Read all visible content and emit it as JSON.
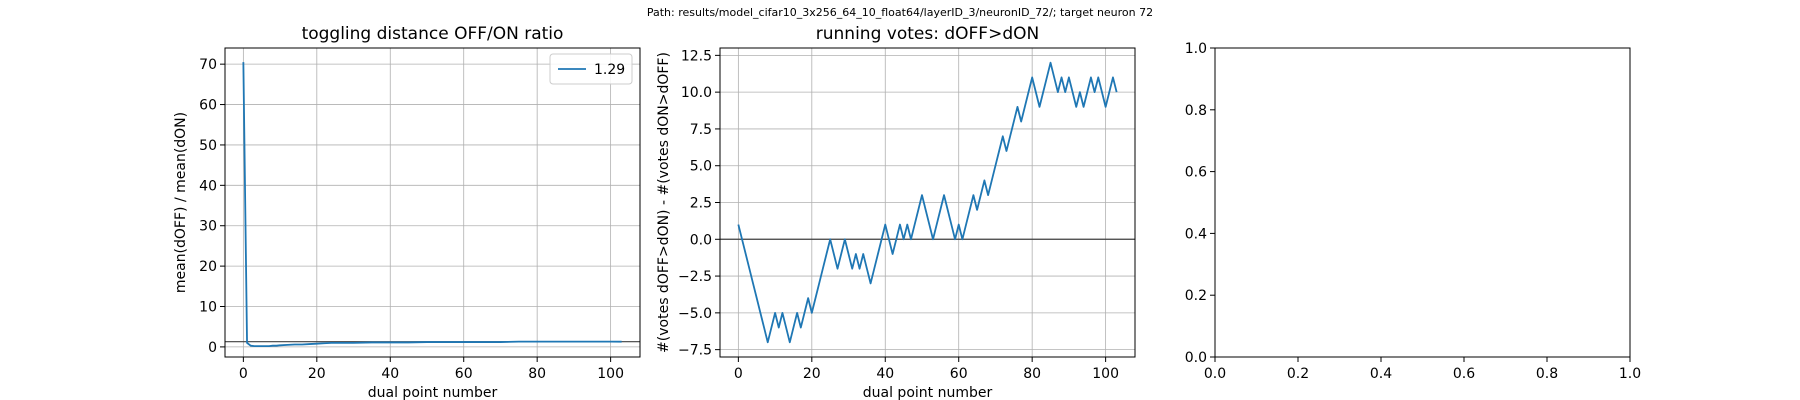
{
  "suptitle": "Path: results/model_cifar10_3x256_64_10_float64/layerID_3/neuronID_72/; target neuron 72",
  "chart_data": [
    {
      "type": "line",
      "title": "toggling distance OFF/ON ratio",
      "xlabel": "dual point number",
      "ylabel": "mean(dOFF) / mean(dON)",
      "xlim": [
        -5,
        108
      ],
      "ylim": [
        -2.5,
        74
      ],
      "xticks": [
        0,
        20,
        40,
        60,
        80,
        100
      ],
      "yticks": [
        0,
        10,
        20,
        30,
        40,
        50,
        60,
        70
      ],
      "xtick_labels": [
        "0",
        "20",
        "40",
        "60",
        "80",
        "100"
      ],
      "ytick_labels": [
        "0",
        "10",
        "20",
        "30",
        "40",
        "50",
        "60",
        "70"
      ],
      "grid": true,
      "legend": "top-right",
      "hline": 1.29,
      "series": [
        {
          "name": "1.29",
          "color": "#1f77b4",
          "x": [
            0,
            1,
            2,
            3,
            4,
            5,
            6,
            7,
            8,
            9,
            10,
            12,
            14,
            16,
            18,
            20,
            22,
            24,
            26,
            28,
            30,
            35,
            40,
            45,
            50,
            55,
            60,
            65,
            70,
            75,
            80,
            85,
            90,
            95,
            100,
            103
          ],
          "y": [
            70.5,
            1.0,
            0.3,
            0.2,
            0.2,
            0.2,
            0.2,
            0.2,
            0.3,
            0.3,
            0.4,
            0.5,
            0.6,
            0.6,
            0.7,
            0.8,
            0.9,
            1.0,
            1.0,
            1.0,
            1.0,
            1.1,
            1.1,
            1.1,
            1.2,
            1.2,
            1.2,
            1.2,
            1.2,
            1.3,
            1.3,
            1.3,
            1.3,
            1.3,
            1.3,
            1.29
          ]
        }
      ]
    },
    {
      "type": "line",
      "title": "running votes: dOFF>dON",
      "xlabel": "dual point number",
      "ylabel": "#(votes dOFF>dON) - #(votes dON>dOFF)",
      "xlim": [
        -5,
        108
      ],
      "ylim": [
        -8,
        13
      ],
      "xticks": [
        0,
        20,
        40,
        60,
        80,
        100
      ],
      "yticks": [
        -7.5,
        -5.0,
        -2.5,
        0.0,
        2.5,
        5.0,
        7.5,
        10.0,
        12.5
      ],
      "xtick_labels": [
        "0",
        "20",
        "40",
        "60",
        "80",
        "100"
      ],
      "ytick_labels": [
        "−7.5",
        "−5.0",
        "−2.5",
        "0.0",
        "2.5",
        "5.0",
        "7.5",
        "10.0",
        "12.5"
      ],
      "grid": true,
      "hline": 0,
      "series": [
        {
          "color": "#1f77b4",
          "x": [
            0,
            1,
            2,
            3,
            4,
            5,
            6,
            7,
            8,
            9,
            10,
            11,
            12,
            13,
            14,
            15,
            16,
            17,
            18,
            19,
            20,
            21,
            22,
            23,
            24,
            25,
            26,
            27,
            28,
            29,
            30,
            31,
            32,
            33,
            34,
            35,
            36,
            37,
            38,
            39,
            40,
            41,
            42,
            43,
            44,
            45,
            46,
            47,
            48,
            49,
            50,
            51,
            52,
            53,
            54,
            55,
            56,
            57,
            58,
            59,
            60,
            61,
            62,
            63,
            64,
            65,
            66,
            67,
            68,
            69,
            70,
            71,
            72,
            73,
            74,
            75,
            76,
            77,
            78,
            79,
            80,
            81,
            82,
            83,
            84,
            85,
            86,
            87,
            88,
            89,
            90,
            91,
            92,
            93,
            94,
            95,
            96,
            97,
            98,
            99,
            100,
            101,
            102,
            103
          ],
          "y": [
            1,
            0,
            -1,
            -2,
            -3,
            -4,
            -5,
            -6,
            -7,
            -6,
            -5,
            -6,
            -5,
            -6,
            -7,
            -6,
            -5,
            -6,
            -5,
            -4,
            -5,
            -4,
            -3,
            -2,
            -1,
            0,
            -1,
            -2,
            -1,
            0,
            -1,
            -2,
            -1,
            -2,
            -1,
            -2,
            -3,
            -2,
            -1,
            0,
            1,
            0,
            -1,
            0,
            1,
            0,
            1,
            0,
            1,
            2,
            3,
            2,
            1,
            0,
            1,
            2,
            3,
            2,
            1,
            0,
            1,
            0,
            1,
            2,
            3,
            2,
            3,
            4,
            3,
            4,
            5,
            6,
            7,
            6,
            7,
            8,
            9,
            8,
            9,
            10,
            11,
            10,
            9,
            10,
            11,
            12,
            11,
            10,
            11,
            10,
            11,
            10,
            9,
            10,
            9,
            10,
            11,
            10,
            11,
            10,
            9,
            10,
            11,
            10
          ]
        }
      ]
    },
    {
      "type": "line",
      "title": "",
      "xlabel": "",
      "ylabel": "",
      "xlim": [
        0,
        1
      ],
      "ylim": [
        0,
        1
      ],
      "xticks": [
        0,
        0.2,
        0.4,
        0.6,
        0.8,
        1.0
      ],
      "yticks": [
        0,
        0.2,
        0.4,
        0.6,
        0.8,
        1.0
      ],
      "xtick_labels": [
        "0.0",
        "0.2",
        "0.4",
        "0.6",
        "0.8",
        "1.0"
      ],
      "ytick_labels": [
        "0.0",
        "0.2",
        "0.4",
        "0.6",
        "0.8",
        "1.0"
      ],
      "grid": false,
      "series": []
    }
  ]
}
